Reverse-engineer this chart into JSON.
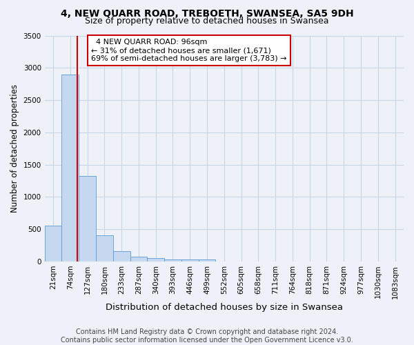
{
  "title": "4, NEW QUARR ROAD, TREBOETH, SWANSEA, SA5 9DH",
  "subtitle": "Size of property relative to detached houses in Swansea",
  "xlabel": "Distribution of detached houses by size in Swansea",
  "ylabel": "Number of detached properties",
  "categories": [
    "21sqm",
    "74sqm",
    "127sqm",
    "180sqm",
    "233sqm",
    "287sqm",
    "340sqm",
    "393sqm",
    "446sqm",
    "499sqm",
    "552sqm",
    "605sqm",
    "658sqm",
    "711sqm",
    "764sqm",
    "818sqm",
    "871sqm",
    "924sqm",
    "977sqm",
    "1030sqm",
    "1083sqm"
  ],
  "values": [
    560,
    2900,
    1330,
    410,
    165,
    75,
    50,
    38,
    30,
    30,
    0,
    0,
    0,
    0,
    0,
    0,
    0,
    0,
    0,
    0,
    0
  ],
  "bar_color": "#c5d8f0",
  "bar_edge_color": "#5b9bd5",
  "grid_color": "#c8d4e8",
  "background_color": "#eef2f8",
  "vline_color": "#cc0000",
  "annotation_text": "  4 NEW QUARR ROAD: 96sqm  \n← 31% of detached houses are smaller (1,671)\n69% of semi-detached houses are larger (3,783) →",
  "annotation_box_facecolor": "#ffffff",
  "annotation_box_edgecolor": "#cc0000",
  "ylim": [
    0,
    3500
  ],
  "yticks": [
    0,
    500,
    1000,
    1500,
    2000,
    2500,
    3000,
    3500
  ],
  "footer_text": "Contains HM Land Registry data © Crown copyright and database right 2024.\nContains public sector information licensed under the Open Government Licence v3.0.",
  "title_fontsize": 10,
  "subtitle_fontsize": 9,
  "xlabel_fontsize": 9.5,
  "ylabel_fontsize": 8.5,
  "tick_fontsize": 7.5,
  "annotation_fontsize": 8,
  "footer_fontsize": 7
}
